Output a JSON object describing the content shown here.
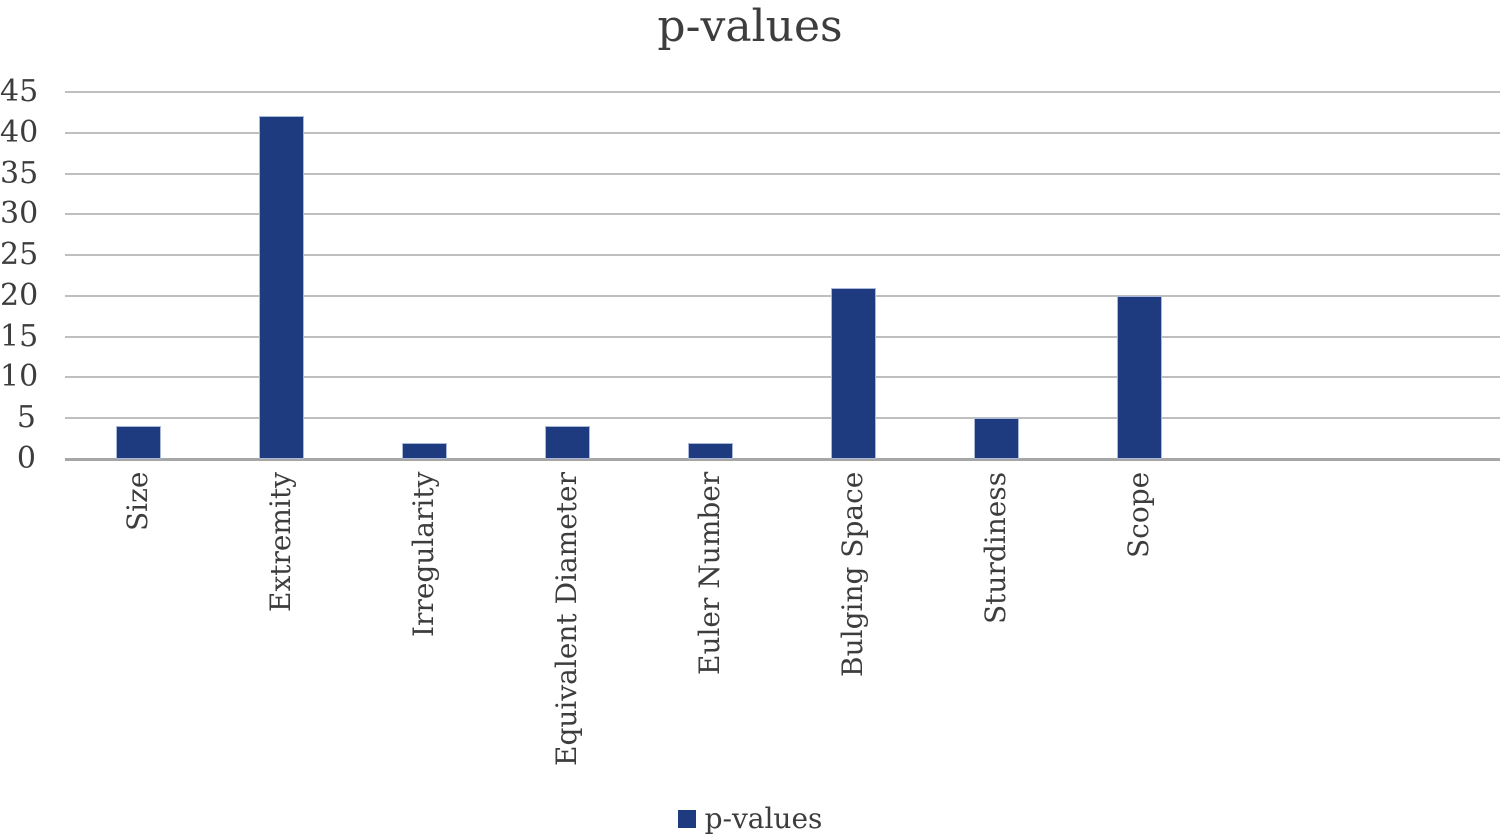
{
  "chart_data": {
    "type": "bar",
    "title": "p-values",
    "categories": [
      "Size",
      "Extremity",
      "Irregularity",
      "Equivalent Diameter",
      "Euler Number",
      "Bulging Space",
      "Sturdiness",
      "Scope"
    ],
    "series": [
      {
        "name": "p-values",
        "values": [
          4,
          42,
          2,
          4,
          2,
          21,
          5,
          20
        ]
      }
    ],
    "ylim": [
      0,
      45
    ],
    "yticks": [
      0,
      5,
      10,
      15,
      20,
      25,
      30,
      35,
      40,
      45
    ],
    "xlabel": "",
    "ylabel": "",
    "grid": true,
    "x_slots": 10,
    "legend": {
      "position": "bottom",
      "label": "p-values"
    },
    "colors": {
      "bar": "#1e3b80",
      "bar_border": "#a9b7d9",
      "gridline": "#bfbfbf",
      "axis_line": "#a6a6a6",
      "text": "#3d3d3d"
    }
  }
}
